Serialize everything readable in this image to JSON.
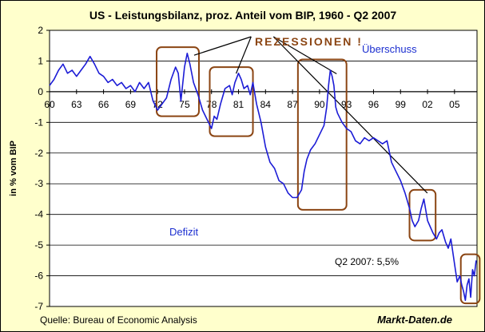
{
  "colors": {
    "frame_bg": "#ffffcc",
    "plot_bg": "#ffffff",
    "line": "#1c1cd6",
    "recession_box": "#8b4513",
    "grid": "#000000"
  },
  "chart_data": {
    "type": "line",
    "title": "US - Leistungsbilanz, proz. Anteil vom BIP, 1960 - Q2 2007",
    "ylabel": "in % vom BIP",
    "xlabel": "",
    "xlim": [
      1960,
      2007.5
    ],
    "ylim": [
      -7,
      2
    ],
    "grid": "horizontal",
    "x_ticks": [
      1960,
      1963,
      1966,
      1969,
      1972,
      1975,
      1978,
      1981,
      1984,
      1987,
      1990,
      1993,
      1996,
      1999,
      2002,
      2005
    ],
    "x_tick_labels": [
      "60",
      "63",
      "66",
      "69",
      "72",
      "75",
      "78",
      "81",
      "84",
      "87",
      "90",
      "93",
      "96",
      "99",
      "02",
      "05"
    ],
    "y_ticks": [
      2,
      1,
      0,
      -1,
      -2,
      -3,
      -4,
      -5,
      -6,
      -7
    ],
    "annotations": {
      "recession_label": "REZESSIONEN !",
      "surplus_label": "Überschuss",
      "deficit_label": "Defizit",
      "last_value_label": "Q2 2007: 5,5%"
    },
    "recessions": [
      {
        "x_start": 1971.9,
        "x_end": 1976.6,
        "y_low": -0.8,
        "y_high": 1.45
      },
      {
        "x_start": 1977.8,
        "x_end": 1982.6,
        "y_low": -1.45,
        "y_high": 0.8
      },
      {
        "x_start": 1987.6,
        "x_end": 1993.0,
        "y_low": -3.85,
        "y_high": 1.05
      },
      {
        "x_start": 2000.0,
        "x_end": 2002.9,
        "y_low": -4.85,
        "y_high": -3.2
      },
      {
        "x_start": 2005.7,
        "x_end": 2007.8,
        "y_low": -6.9,
        "y_high": -5.3
      }
    ],
    "series": [
      {
        "points": [
          [
            1960.0,
            0.2
          ],
          [
            1960.5,
            0.4
          ],
          [
            1961.0,
            0.7
          ],
          [
            1961.5,
            0.9
          ],
          [
            1962.0,
            0.6
          ],
          [
            1962.5,
            0.7
          ],
          [
            1963.0,
            0.5
          ],
          [
            1963.5,
            0.7
          ],
          [
            1964.0,
            0.9
          ],
          [
            1964.5,
            1.15
          ],
          [
            1965.0,
            0.9
          ],
          [
            1965.5,
            0.6
          ],
          [
            1966.0,
            0.5
          ],
          [
            1966.5,
            0.3
          ],
          [
            1967.0,
            0.4
          ],
          [
            1967.5,
            0.2
          ],
          [
            1968.0,
            0.3
          ],
          [
            1968.5,
            0.1
          ],
          [
            1969.0,
            0.2
          ],
          [
            1969.5,
            0.0
          ],
          [
            1970.0,
            0.3
          ],
          [
            1970.5,
            0.1
          ],
          [
            1971.0,
            0.3
          ],
          [
            1971.5,
            -0.3
          ],
          [
            1972.0,
            -0.6
          ],
          [
            1972.5,
            -0.4
          ],
          [
            1973.0,
            -0.2
          ],
          [
            1973.5,
            0.4
          ],
          [
            1974.0,
            0.8
          ],
          [
            1974.3,
            0.6
          ],
          [
            1974.6,
            -0.3
          ],
          [
            1975.0,
            0.8
          ],
          [
            1975.3,
            1.25
          ],
          [
            1975.6,
            0.9
          ],
          [
            1976.0,
            0.3
          ],
          [
            1976.5,
            -0.1
          ],
          [
            1977.0,
            -0.6
          ],
          [
            1977.5,
            -0.9
          ],
          [
            1978.0,
            -1.2
          ],
          [
            1978.3,
            -0.8
          ],
          [
            1978.6,
            -0.9
          ],
          [
            1979.0,
            -0.4
          ],
          [
            1979.5,
            0.1
          ],
          [
            1980.0,
            0.2
          ],
          [
            1980.3,
            -0.1
          ],
          [
            1980.6,
            0.3
          ],
          [
            1981.0,
            0.6
          ],
          [
            1981.3,
            0.4
          ],
          [
            1981.6,
            0.1
          ],
          [
            1982.0,
            0.2
          ],
          [
            1982.3,
            -0.1
          ],
          [
            1982.6,
            0.3
          ],
          [
            1983.0,
            -0.4
          ],
          [
            1983.5,
            -1.0
          ],
          [
            1984.0,
            -1.8
          ],
          [
            1984.5,
            -2.3
          ],
          [
            1985.0,
            -2.5
          ],
          [
            1985.5,
            -2.9
          ],
          [
            1986.0,
            -3.0
          ],
          [
            1986.5,
            -3.3
          ],
          [
            1987.0,
            -3.45
          ],
          [
            1987.5,
            -3.45
          ],
          [
            1988.0,
            -3.2
          ],
          [
            1988.3,
            -2.6
          ],
          [
            1988.6,
            -2.2
          ],
          [
            1989.0,
            -1.9
          ],
          [
            1989.5,
            -1.7
          ],
          [
            1990.0,
            -1.4
          ],
          [
            1990.5,
            -1.1
          ],
          [
            1990.8,
            -0.5
          ],
          [
            1991.0,
            0.2
          ],
          [
            1991.2,
            0.7
          ],
          [
            1991.4,
            0.5
          ],
          [
            1991.6,
            0.2
          ],
          [
            1991.8,
            -0.5
          ],
          [
            1992.0,
            -0.7
          ],
          [
            1992.5,
            -1.0
          ],
          [
            1993.0,
            -1.2
          ],
          [
            1993.5,
            -1.3
          ],
          [
            1994.0,
            -1.6
          ],
          [
            1994.5,
            -1.7
          ],
          [
            1995.0,
            -1.5
          ],
          [
            1995.5,
            -1.6
          ],
          [
            1996.0,
            -1.5
          ],
          [
            1996.5,
            -1.6
          ],
          [
            1997.0,
            -1.7
          ],
          [
            1997.5,
            -1.6
          ],
          [
            1998.0,
            -2.3
          ],
          [
            1998.5,
            -2.6
          ],
          [
            1999.0,
            -2.9
          ],
          [
            1999.5,
            -3.3
          ],
          [
            2000.0,
            -3.8
          ],
          [
            2000.3,
            -4.2
          ],
          [
            2000.6,
            -4.4
          ],
          [
            2001.0,
            -4.2
          ],
          [
            2001.3,
            -3.8
          ],
          [
            2001.6,
            -3.5
          ],
          [
            2002.0,
            -4.2
          ],
          [
            2002.3,
            -4.4
          ],
          [
            2002.6,
            -4.6
          ],
          [
            2003.0,
            -4.8
          ],
          [
            2003.3,
            -4.6
          ],
          [
            2003.6,
            -4.5
          ],
          [
            2004.0,
            -4.9
          ],
          [
            2004.3,
            -5.1
          ],
          [
            2004.6,
            -4.8
          ],
          [
            2005.0,
            -5.6
          ],
          [
            2005.3,
            -6.2
          ],
          [
            2005.6,
            -6.0
          ],
          [
            2005.8,
            -6.3
          ],
          [
            2006.0,
            -6.5
          ],
          [
            2006.2,
            -6.8
          ],
          [
            2006.4,
            -6.3
          ],
          [
            2006.6,
            -6.1
          ],
          [
            2006.8,
            -6.7
          ],
          [
            2007.0,
            -5.8
          ],
          [
            2007.2,
            -6.0
          ],
          [
            2007.4,
            -5.5
          ]
        ]
      }
    ],
    "source": "Quelle: Bureau of Economic Analysis",
    "brand": "Markt-Daten.de"
  }
}
